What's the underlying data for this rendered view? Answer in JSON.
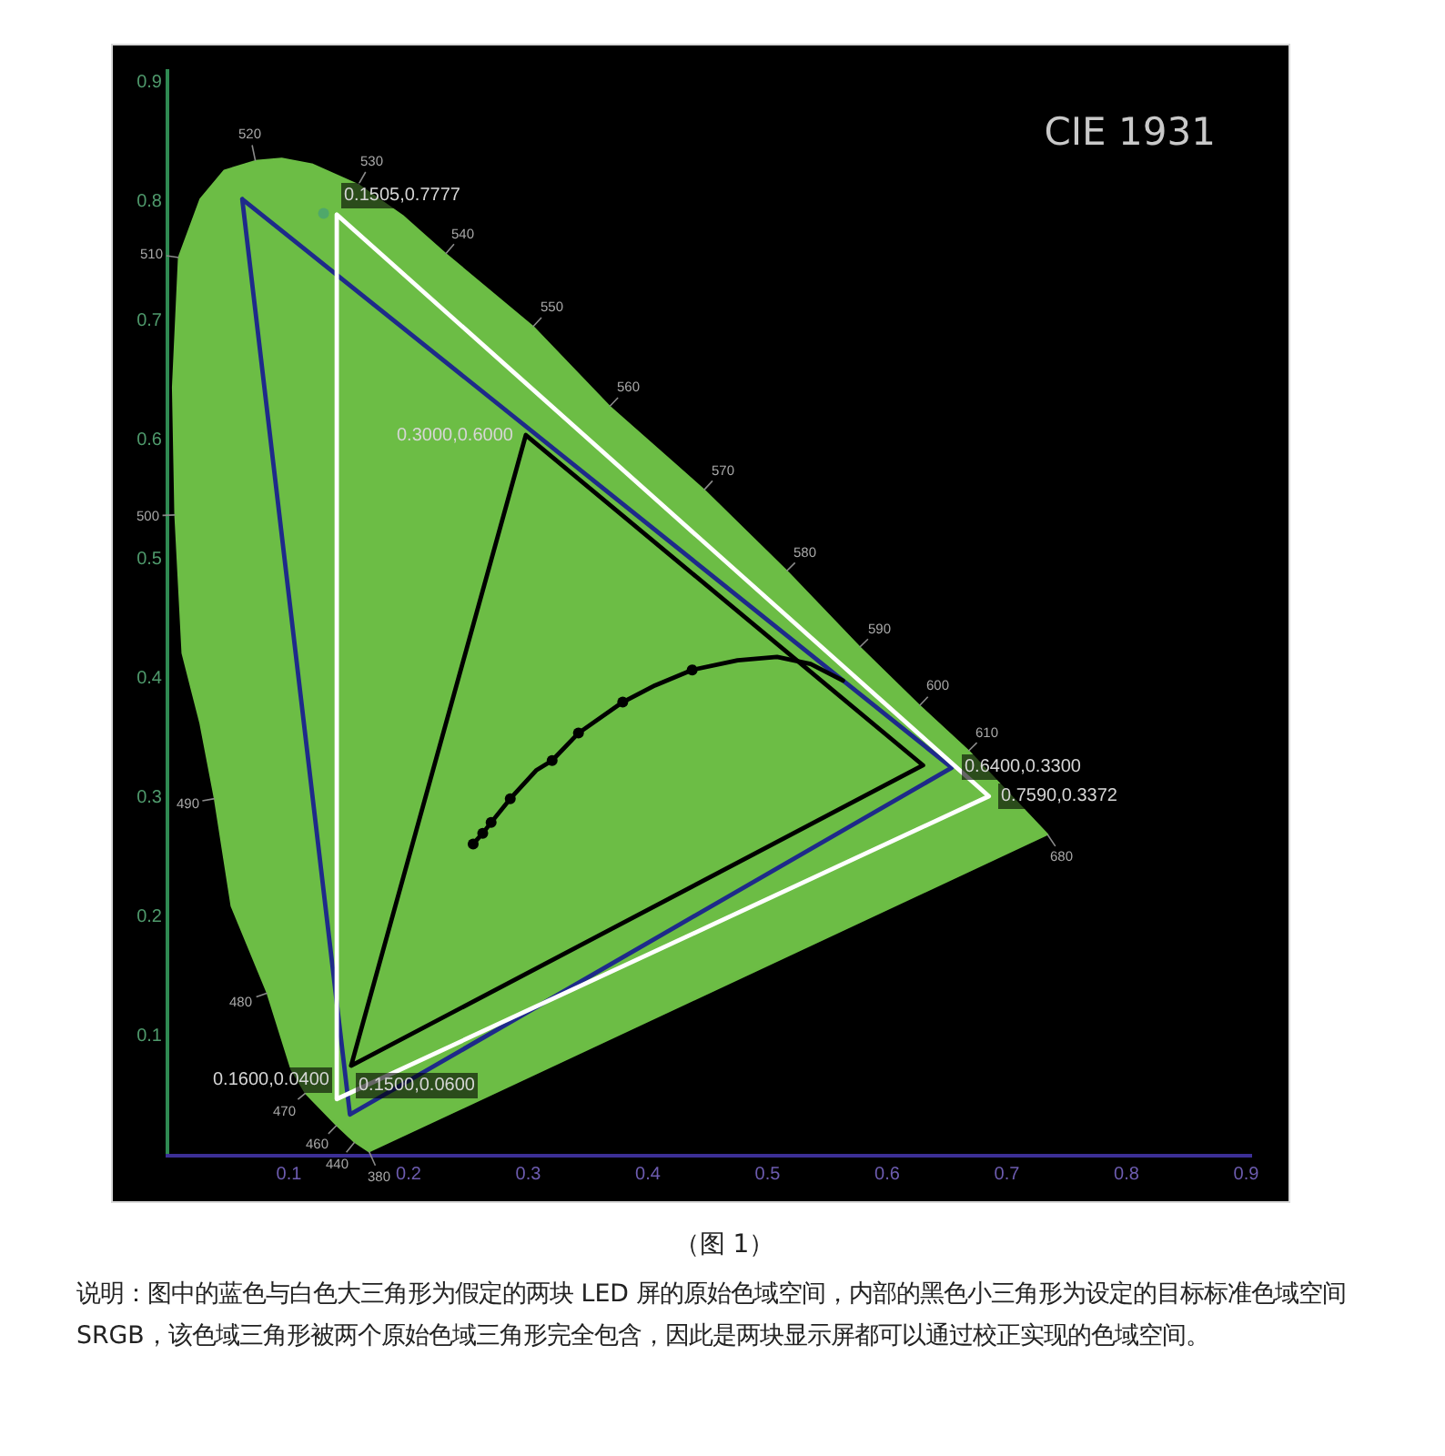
{
  "chart_data": {
    "type": "line",
    "title": "CIE 1931",
    "xlim": [
      0,
      0.905
    ],
    "ylim": [
      0,
      0.91
    ],
    "xticks": [
      0.1,
      0.2,
      0.3,
      0.4,
      0.5,
      0.6,
      0.7,
      0.8,
      0.9
    ],
    "yticks": [
      0.1,
      0.2,
      0.3,
      0.4,
      0.5,
      0.6,
      0.7,
      0.8,
      0.9
    ],
    "series": [
      {
        "type": "area",
        "color": "#6cbd45",
        "x": [
          0.167,
          0.155,
          0.14,
          0.114,
          0.102,
          0.082,
          0.052,
          0.038,
          0.026,
          0.011,
          0.005,
          0.003,
          0.008,
          0.026,
          0.046,
          0.072,
          0.094,
          0.12,
          0.158,
          0.195,
          0.231,
          0.304,
          0.368,
          0.447,
          0.516,
          0.577,
          0.627,
          0.668,
          0.734,
          0.167
        ],
        "values": [
          0.002,
          0.01,
          0.024,
          0.051,
          0.071,
          0.135,
          0.208,
          0.298,
          0.361,
          0.42,
          0.536,
          0.643,
          0.752,
          0.801,
          0.825,
          0.833,
          0.835,
          0.83,
          0.813,
          0.787,
          0.755,
          0.694,
          0.627,
          0.557,
          0.489,
          0.425,
          0.376,
          0.338,
          0.268,
          0.002
        ]
      },
      {
        "color": "#1e2a8a",
        "x": [
          0.061,
          0.151,
          0.654,
          0.061
        ],
        "values": [
          0.801,
          0.033,
          0.324,
          0.801
        ]
      },
      {
        "color": "#ffffff",
        "x": [
          0.14,
          0.14,
          0.685,
          0.14
        ],
        "values": [
          0.788,
          0.046,
          0.3,
          0.788
        ]
      },
      {
        "color": "#000000",
        "x": [
          0.298,
          0.152,
          0.63,
          0.298
        ],
        "values": [
          0.603,
          0.074,
          0.326,
          0.603
        ]
      },
      {
        "color": "#000000",
        "x": [
          0.254,
          0.262,
          0.269,
          0.285,
          0.307,
          0.32,
          0.342,
          0.379,
          0.406,
          0.437,
          0.475,
          0.508,
          0.536,
          0.563
        ],
        "values": [
          0.26,
          0.269,
          0.278,
          0.298,
          0.322,
          0.33,
          0.353,
          0.379,
          0.393,
          0.406,
          0.414,
          0.417,
          0.411,
          0.397
        ]
      },
      {
        "type": "scatter",
        "color": "#000000",
        "marker": "circle",
        "x": [
          0.254,
          0.262,
          0.269,
          0.285,
          0.32,
          0.342,
          0.379,
          0.437
        ],
        "values": [
          0.26,
          0.269,
          0.278,
          0.298,
          0.33,
          0.353,
          0.379,
          0.406
        ]
      },
      {
        "type": "scatter",
        "color": "#4fa86a",
        "marker": "circle",
        "x": [
          0.129
        ],
        "values": [
          0.789
        ]
      }
    ],
    "annotations": [
      {
        "text": "380",
        "x": 0.167,
        "y": 0.002
      },
      {
        "text": "440",
        "x": 0.155,
        "y": 0.01
      },
      {
        "text": "460",
        "x": 0.14,
        "y": 0.024
      },
      {
        "text": "470",
        "x": 0.114,
        "y": 0.051
      },
      {
        "text": "480",
        "x": 0.082,
        "y": 0.135
      },
      {
        "text": "490",
        "x": 0.038,
        "y": 0.298
      },
      {
        "text": "500",
        "x": 0.005,
        "y": 0.536
      },
      {
        "text": "510",
        "x": 0.008,
        "y": 0.752
      },
      {
        "text": "520",
        "x": 0.072,
        "y": 0.833
      },
      {
        "text": "530",
        "x": 0.158,
        "y": 0.813
      },
      {
        "text": "540",
        "x": 0.231,
        "y": 0.755
      },
      {
        "text": "550",
        "x": 0.304,
        "y": 0.694
      },
      {
        "text": "560",
        "x": 0.368,
        "y": 0.627
      },
      {
        "text": "570",
        "x": 0.447,
        "y": 0.557
      },
      {
        "text": "580",
        "x": 0.516,
        "y": 0.489
      },
      {
        "text": "590",
        "x": 0.577,
        "y": 0.425
      },
      {
        "text": "600",
        "x": 0.627,
        "y": 0.376
      },
      {
        "text": "610",
        "x": 0.668,
        "y": 0.338
      },
      {
        "text": "680",
        "x": 0.734,
        "y": 0.268
      },
      {
        "text": "0.1505,0.7777",
        "x": 0.14,
        "y": 0.788
      },
      {
        "text": "0.3000,0.6000",
        "x": 0.298,
        "y": 0.603
      },
      {
        "text": "0.6400,0.3300",
        "x": 0.654,
        "y": 0.324
      },
      {
        "text": "0.7590,0.3372",
        "x": 0.685,
        "y": 0.3
      },
      {
        "text": "0.1500,0.0600",
        "x": 0.152,
        "y": 0.074
      },
      {
        "text": "0.1600,0.0400",
        "x": 0.14,
        "y": 0.046
      },
      "（图 1）",
      "说明：图中的蓝色与白色大三角形为假定的两块 LED 屏的原始色域空间，内部的黑色小三角形为设定的目标标准色域空间 SRGB，该色域三角形被两个原始色域三角形完全包含，因此是两块显示屏都可以通过校正实现的色域空间。"
    ]
  }
}
